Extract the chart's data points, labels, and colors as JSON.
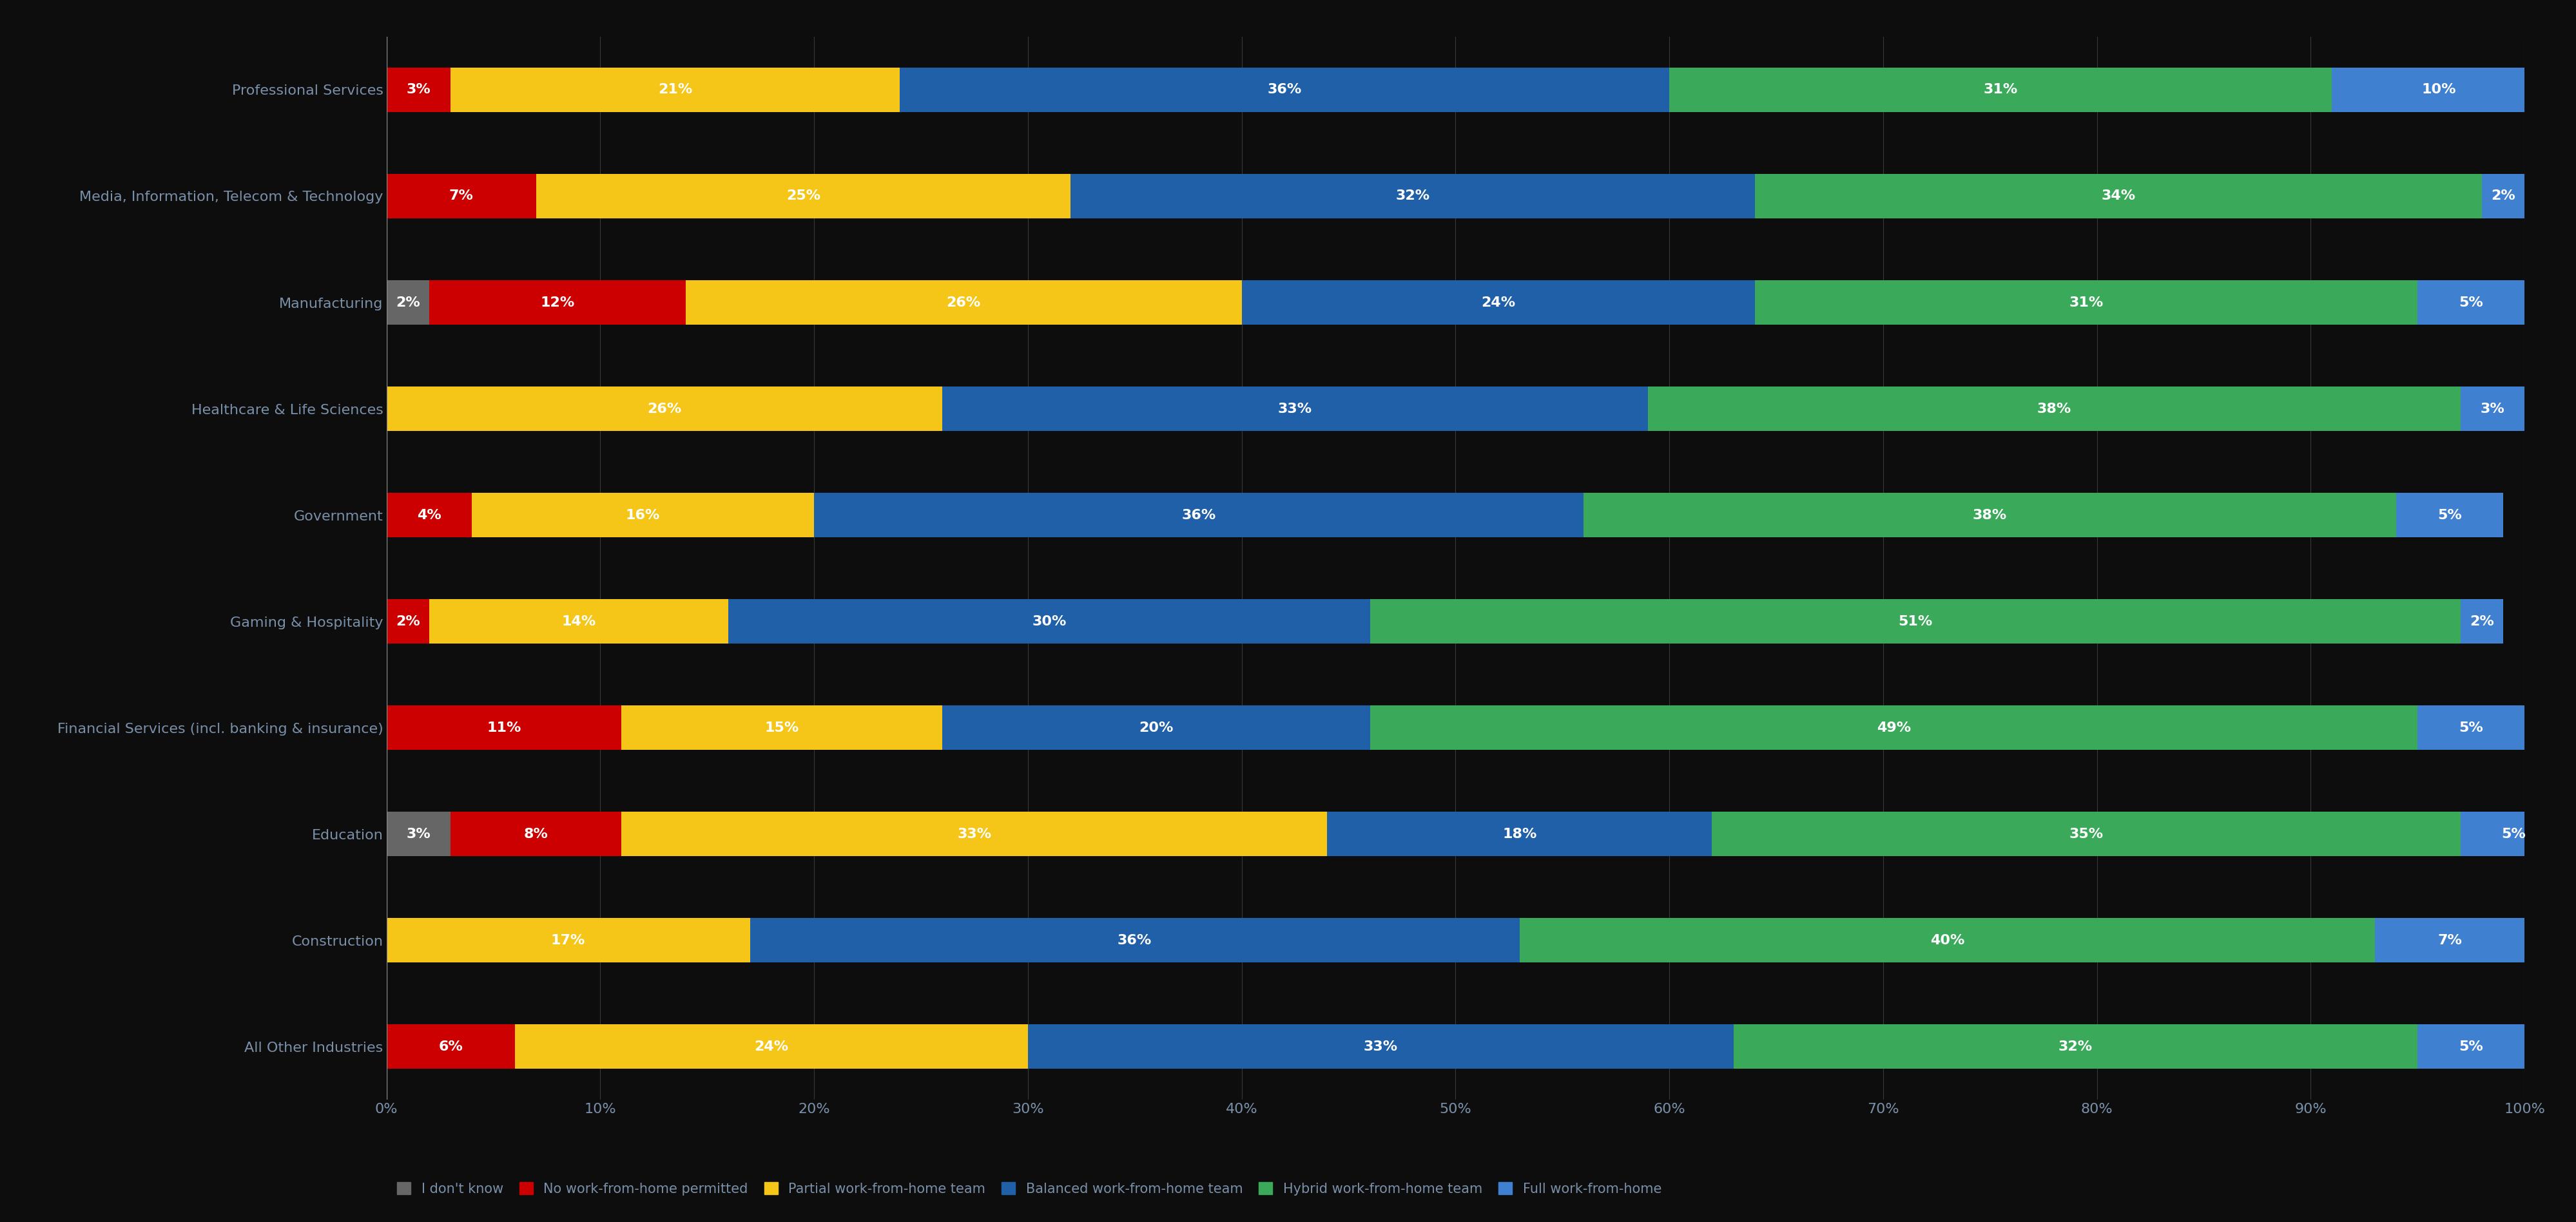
{
  "categories": [
    "Professional Services",
    "Media, Information, Telecom & Technology",
    "Manufacturing",
    "Healthcare & Life Sciences",
    "Government",
    "Gaming & Hospitality",
    "Financial Services (incl. banking & insurance)",
    "Education",
    "Construction",
    "All Other Industries"
  ],
  "series": {
    "I don't know": [
      0,
      0,
      2,
      0,
      0,
      0,
      0,
      3,
      0,
      0
    ],
    "No work-from-home permitted": [
      3,
      7,
      12,
      0,
      4,
      2,
      11,
      8,
      0,
      6
    ],
    "Partial work-from-home team": [
      21,
      25,
      26,
      26,
      16,
      14,
      15,
      33,
      17,
      24
    ],
    "Balanced work-from-home team": [
      36,
      32,
      24,
      33,
      36,
      30,
      20,
      18,
      36,
      33
    ],
    "Hybrid work-from-home team": [
      31,
      34,
      31,
      38,
      38,
      51,
      49,
      35,
      40,
      32
    ],
    "Full work-from-home": [
      10,
      2,
      5,
      3,
      5,
      2,
      5,
      5,
      7,
      5
    ]
  },
  "colors": {
    "I don't know": "#666666",
    "No work-from-home permitted": "#cc0000",
    "Partial work-from-home team": "#f5c518",
    "Balanced work-from-home team": "#2060a8",
    "Hybrid work-from-home team": "#3aaa5a",
    "Full work-from-home": "#4080d0"
  },
  "legend_order": [
    "I don't know",
    "No work-from-home permitted",
    "Partial work-from-home team",
    "Balanced work-from-home team",
    "Hybrid work-from-home team",
    "Full work-from-home"
  ],
  "background_color": "#0d0d0d",
  "text_color": "#7a8fa8",
  "bar_label_color": "#ffffff",
  "bar_height": 0.42,
  "label_fontsize": 16,
  "tick_fontsize": 16,
  "legend_fontsize": 15
}
